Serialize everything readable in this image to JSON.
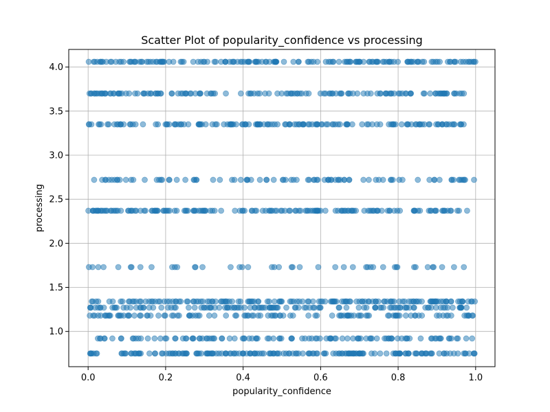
{
  "chart_data": {
    "type": "scatter",
    "title": "Scatter Plot of popularity_confidence vs processing",
    "xlabel": "popularity_confidence",
    "ylabel": "processing",
    "xlim": [
      -0.05,
      1.05
    ],
    "ylim": [
      0.6,
      4.2
    ],
    "xticks": [
      0.0,
      0.2,
      0.4,
      0.6,
      0.8,
      1.0
    ],
    "xtick_labels": [
      "0.0",
      "0.2",
      "0.4",
      "0.6",
      "0.8",
      "1.0"
    ],
    "yticks": [
      1.0,
      1.5,
      2.0,
      2.5,
      3.0,
      3.5,
      4.0
    ],
    "ytick_labels": [
      "1.0",
      "1.5",
      "2.0",
      "2.5",
      "3.0",
      "3.5",
      "4.0"
    ],
    "grid": true,
    "marker_color": "#1f77b4",
    "marker_alpha": 0.5,
    "x_range": [
      0.0,
      1.0
    ],
    "bands": [
      {
        "y": 0.75,
        "count": 180
      },
      {
        "y": 0.92,
        "count": 110
      },
      {
        "y": 1.18,
        "count": 110
      },
      {
        "y": 1.27,
        "count": 120
      },
      {
        "y": 1.34,
        "count": 150
      },
      {
        "y": 1.73,
        "count": 45
      },
      {
        "y": 2.37,
        "count": 160
      },
      {
        "y": 2.72,
        "count": 90
      },
      {
        "y": 3.35,
        "count": 150
      },
      {
        "y": 3.7,
        "count": 140
      },
      {
        "y": 4.06,
        "count": 160
      }
    ]
  }
}
